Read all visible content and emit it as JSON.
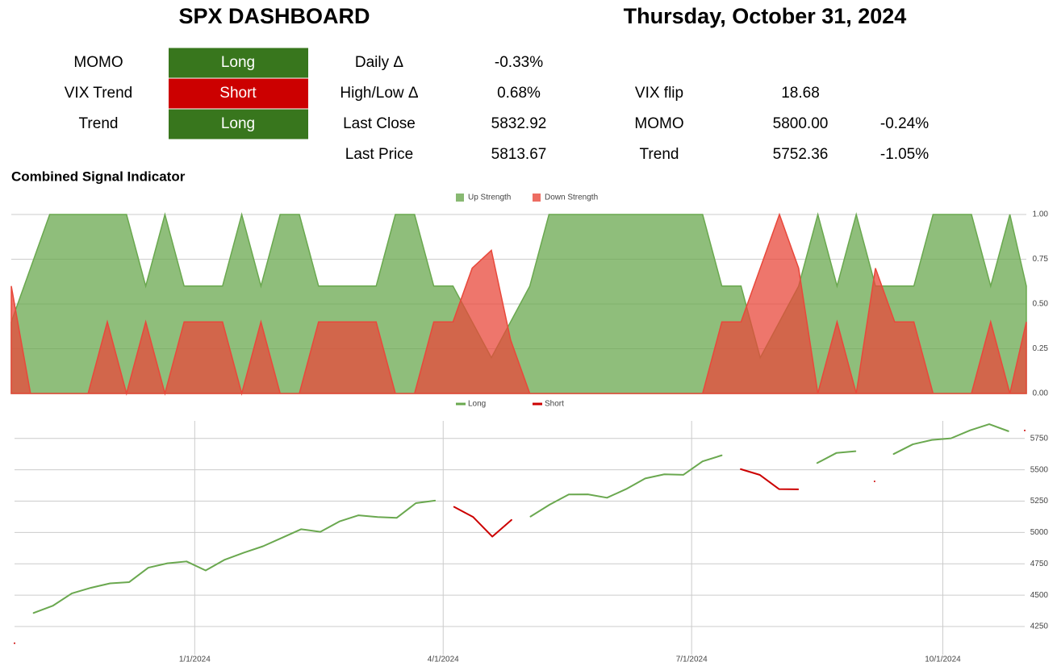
{
  "header": {
    "title": "SPX DASHBOARD",
    "date": "Thursday, October 31, 2024"
  },
  "signals": [
    {
      "label": "MOMO",
      "status": "Long",
      "color": "#38761d"
    },
    {
      "label": "VIX Trend",
      "status": "Short",
      "color": "#cc0000"
    },
    {
      "label": "Trend",
      "status": "Long",
      "color": "#38761d"
    }
  ],
  "stats": [
    {
      "label": "Daily Δ",
      "value": "-0.33%"
    },
    {
      "label": "High/Low Δ",
      "value": "0.68%"
    },
    {
      "label": "Last Close",
      "value": "5832.92"
    },
    {
      "label": "Last Price",
      "value": "5813.67"
    }
  ],
  "levels": [
    {
      "label": "VIX flip",
      "value": "18.68"
    },
    {
      "label": "MOMO",
      "value": "5800.00",
      "change": "-0.24%"
    },
    {
      "label": "Trend",
      "value": "5752.36",
      "change": "-1.05%"
    }
  ],
  "section_title": "Combined Signal Indicator",
  "chart_data": [
    {
      "type": "area",
      "x": [
        "10/27/2023",
        "11/3/2023",
        "11/10/2023",
        "11/17/2023",
        "11/24/2023",
        "12/1/2023",
        "12/8/2023",
        "12/15/2023",
        "12/22/2023",
        "12/29/2023",
        "1/5/2024",
        "1/12/2024",
        "1/19/2024",
        "1/26/2024",
        "2/2/2024",
        "2/9/2024",
        "2/16/2024",
        "2/23/2024",
        "3/1/2024",
        "3/8/2024",
        "3/15/2024",
        "3/22/2024",
        "3/29/2024",
        "4/5/2024",
        "4/12/2024",
        "4/19/2024",
        "4/26/2024",
        "5/3/2024",
        "5/10/2024",
        "5/17/2024",
        "5/24/2024",
        "5/31/2024",
        "6/7/2024",
        "6/14/2024",
        "6/21/2024",
        "6/28/2024",
        "7/5/2024",
        "7/12/2024",
        "7/19/2024",
        "7/26/2024",
        "8/2/2024",
        "8/9/2024",
        "8/16/2024",
        "8/23/2024",
        "8/30/2024",
        "9/6/2024",
        "9/13/2024",
        "9/20/2024",
        "9/27/2024",
        "10/4/2024",
        "10/11/2024",
        "10/18/2024",
        "10/25/2024",
        "10/31/2024"
      ],
      "xlim": [
        "10/27/2023",
        "10/31/2024"
      ],
      "series": [
        {
          "name": "Up Strength",
          "color": "#6aa84f",
          "values": [
            0.4,
            0.7,
            1,
            1,
            1,
            1,
            1,
            0.6,
            1,
            0.6,
            0.6,
            0.6,
            1,
            0.6,
            1,
            1,
            0.6,
            0.6,
            0.6,
            0.6,
            1,
            1,
            0.6,
            0.6,
            0.4,
            0.2,
            0.4,
            0.6,
            1,
            1,
            1,
            1,
            1,
            1,
            1,
            1,
            1,
            0.6,
            0.6,
            0.2,
            0.4,
            0.6,
            1,
            0.6,
            1,
            0.6,
            0.6,
            0.6,
            1,
            1,
            1,
            0.6,
            1,
            0.6
          ]
        },
        {
          "name": "Down Strength",
          "color": "#e8483b",
          "values": [
            0.6,
            0,
            0,
            0,
            0,
            0.4,
            0,
            0.4,
            0,
            0.4,
            0.4,
            0.4,
            0,
            0.4,
            0,
            0,
            0.4,
            0.4,
            0.4,
            0.4,
            0,
            0,
            0.4,
            0.4,
            0.7,
            0.8,
            0.3,
            0,
            0,
            0,
            0,
            0,
            0,
            0,
            0,
            0,
            0,
            0.4,
            0.4,
            0.7,
            1,
            0.7,
            0,
            0.4,
            0,
            0.7,
            0.4,
            0.4,
            0,
            0,
            0,
            0.4,
            0,
            0.4
          ]
        }
      ],
      "ylim": [
        0,
        1
      ],
      "yticks": [
        {
          "value": 0,
          "label": "0.00"
        },
        {
          "value": 0.25,
          "label": "0.25"
        },
        {
          "value": 0.5,
          "label": "0.50"
        },
        {
          "value": 0.75,
          "label": "0.75"
        },
        {
          "value": 1,
          "label": "1.00"
        }
      ],
      "grid": true,
      "legend": "top"
    },
    {
      "type": "line",
      "x": [
        "10/27/2023",
        "11/3/2023",
        "11/10/2023",
        "11/17/2023",
        "11/24/2023",
        "12/1/2023",
        "12/8/2023",
        "12/15/2023",
        "12/22/2023",
        "12/29/2023",
        "1/5/2024",
        "1/12/2024",
        "1/19/2024",
        "1/26/2024",
        "2/2/2024",
        "2/9/2024",
        "2/16/2024",
        "2/23/2024",
        "3/1/2024",
        "3/8/2024",
        "3/15/2024",
        "3/22/2024",
        "3/29/2024",
        "4/5/2024",
        "4/12/2024",
        "4/19/2024",
        "4/26/2024",
        "5/3/2024",
        "5/10/2024",
        "5/17/2024",
        "5/24/2024",
        "5/31/2024",
        "6/7/2024",
        "6/14/2024",
        "6/21/2024",
        "6/28/2024",
        "7/5/2024",
        "7/12/2024",
        "7/19/2024",
        "7/26/2024",
        "8/2/2024",
        "8/9/2024",
        "8/16/2024",
        "8/23/2024",
        "8/30/2024",
        "9/6/2024",
        "9/13/2024",
        "9/20/2024",
        "9/27/2024",
        "10/4/2024",
        "10/11/2024",
        "10/18/2024",
        "10/25/2024",
        "10/31/2024"
      ],
      "xlim": [
        "10/27/2023",
        "10/31/2024"
      ],
      "xticks": [
        "1/1/2024",
        "4/1/2024",
        "7/1/2024",
        "10/1/2024"
      ],
      "series": [
        {
          "name": "Long",
          "color": "#6aa84f",
          "values": [
            null,
            4358,
            4415,
            4514,
            4559,
            4594,
            4604,
            4719,
            4754,
            4769,
            4697,
            4783,
            4839,
            4890,
            4958,
            5026,
            5005,
            5088,
            5137,
            5123,
            5117,
            5234,
            5254,
            null,
            null,
            null,
            null,
            5127,
            5222,
            5303,
            5304,
            5277,
            5346,
            5431,
            5464,
            5460,
            5567,
            5615,
            null,
            null,
            null,
            null,
            5554,
            5634,
            5648,
            null,
            5626,
            5703,
            5738,
            5751,
            5815,
            5864,
            5808,
            null
          ]
        },
        {
          "name": "Short",
          "color": "#cc0000",
          "values": [
            4117,
            null,
            null,
            null,
            null,
            null,
            null,
            null,
            null,
            null,
            null,
            null,
            null,
            null,
            null,
            null,
            null,
            null,
            null,
            null,
            null,
            null,
            null,
            5204,
            5123,
            4967,
            5100,
            null,
            null,
            null,
            null,
            null,
            null,
            null,
            null,
            null,
            null,
            null,
            5505,
            5459,
            5346,
            5344,
            null,
            null,
            null,
            5408,
            null,
            null,
            null,
            null,
            null,
            null,
            null,
            5814
          ]
        }
      ],
      "ylim": [
        4025,
        5890
      ],
      "yticks": [
        4250,
        4500,
        4750,
        5000,
        5250,
        5500,
        5750
      ],
      "grid": true,
      "legend": "top"
    }
  ]
}
